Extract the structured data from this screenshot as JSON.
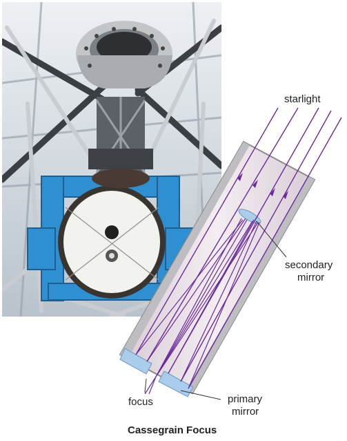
{
  "photo": {
    "subject": "telescope-photograph",
    "colors": {
      "frame": "#2f8fd0",
      "truss": "#c9ccd0",
      "dome": "#d8dde2",
      "mirror": "#f2f2ee"
    }
  },
  "diagram": {
    "labels": {
      "starlight": "starlight",
      "secondary_line1": "secondary",
      "secondary_line2": "mirror",
      "focus": "focus",
      "primary_line1": "primary",
      "primary_line2": "mirror"
    },
    "colors": {
      "ray": "#6a2a9a",
      "tube": "#e6dbe4",
      "tube_edge": "#8a8a8a",
      "mirror": "#a9cdea"
    }
  },
  "caption": "Cassegrain Focus"
}
